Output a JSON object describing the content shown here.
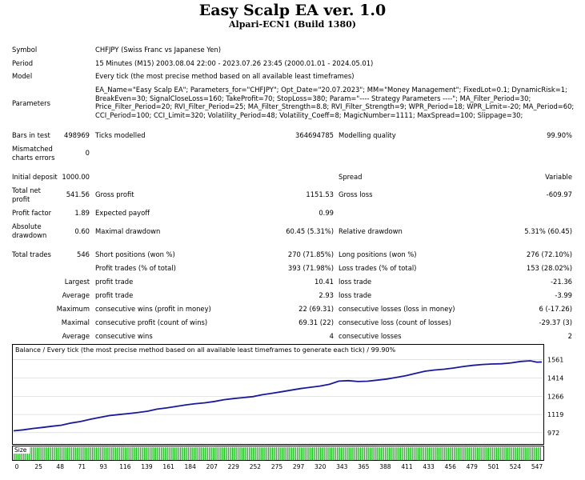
{
  "header": {
    "title": "Easy Scalp EA ver. 1.0",
    "subtitle": "Alpari-ECN1 (Build 1380)"
  },
  "info": {
    "symbol_label": "Symbol",
    "symbol_value": "CHFJPY (Swiss Franc vs Japanese Yen)",
    "period_label": "Period",
    "period_value": "15 Minutes (M15) 2003.08.04 22:00 - 2023.07.26 23:45 (2000.01.01 - 2024.05.01)",
    "model_label": "Model",
    "model_value": "Every tick (the most precise method based on all available least timeframes)",
    "parameters_label": "Parameters",
    "parameters_value": "EA_Name=\"Easy Scalp EA\"; Parameters_for=\"CHFJPY\"; Opt_Date=\"20.07.2023\"; MM=\"Money Management\"; FixedLot=0.1; DynamicRisk=1; BreakEven=30; SignalCloseLoss=160; TakeProfit=70; StopLoss=380; Param=\"---- Strategy Parameters ----\"; MA_Filter_Period=30; Price_Filter_Period=20; RVI_Filter_Period=25; MA_Filter_Strength=8.8; RVI_Filter_Strength=9; WPR_Period=18; WPR_Limit=-20; MA_Period=60; CCI_Period=100; CCI_Limit=320; Volatility_Period=48; Volatility_Coeff=8; MagicNumber=1111; MaxSpread=100; Slippage=30;"
  },
  "stats": {
    "bars_label": "Bars in test",
    "bars_value": "498969",
    "ticks_label": "Ticks modelled",
    "ticks_value": "364694785",
    "quality_label": "Modelling quality",
    "quality_value": "99.90%",
    "mismatched_label_1": "Mismatched",
    "mismatched_label_2": "charts errors",
    "mismatched_value": "0",
    "deposit_label": "Initial deposit",
    "deposit_value": "1000.00",
    "spread_label": "Spread",
    "spread_value": "Variable",
    "net_label_1": "Total net",
    "net_label_2": "profit",
    "net_value": "541.56",
    "gross_profit_label": "Gross profit",
    "gross_profit_value": "1151.53",
    "gross_loss_label": "Gross loss",
    "gross_loss_value": "-609.97",
    "pf_label": "Profit factor",
    "pf_value": "1.89",
    "payoff_label": "Expected payoff",
    "payoff_value": "0.99",
    "absdd_label_1": "Absolute",
    "absdd_label_2": "drawdown",
    "absdd_value": "0.60",
    "maxdd_label": "Maximal drawdown",
    "maxdd_value": "60.45 (5.31%)",
    "reldd_label": "Relative drawdown",
    "reldd_value": "5.31% (60.45)",
    "trades_label": "Total trades",
    "trades_value": "546",
    "short_label": "Short positions (won %)",
    "short_value": "270 (71.85%)",
    "long_label": "Long positions (won %)",
    "long_value": "276 (72.10%)",
    "profit_trades_label": "Profit trades (% of total)",
    "profit_trades_value": "393 (71.98%)",
    "loss_trades_label": "Loss trades (% of total)",
    "loss_trades_value": "153 (28.02%)",
    "largest_label": "Largest",
    "largest_profit_label": "profit trade",
    "largest_profit_value": "10.41",
    "largest_loss_label": "loss trade",
    "largest_loss_value": "-21.36",
    "average_label": "Average",
    "average_profit_label": "profit trade",
    "average_profit_value": "2.93",
    "average_loss_label": "loss trade",
    "average_loss_value": "-3.99",
    "maximum_label": "Maximum",
    "max_wins_label": "consecutive wins (profit in money)",
    "max_wins_value": "22 (69.31)",
    "max_losses_label": "consecutive losses (loss in money)",
    "max_losses_value": "6 (-17.26)",
    "maximal_label": "Maximal",
    "maximal_profit_label": "consecutive profit (count of wins)",
    "maximal_profit_value": "69.31 (22)",
    "maximal_loss_label": "consecutive loss (count of losses)",
    "maximal_loss_value": "-29.37 (3)",
    "average2_label": "Average",
    "avg_wins_label": "consecutive wins",
    "avg_wins_value": "4",
    "avg_losses_label": "consecutive losses",
    "avg_losses_value": "2"
  },
  "chart_data": {
    "type": "line",
    "title": "Balance / Every tick (the most precise method based on all available least timeframes to generate each tick)  / 99.90%",
    "size_label": "Size",
    "colors": {
      "line": "#1a1a99",
      "bars": "#22bb22",
      "grid": "#c8c8c8"
    },
    "ylim": [
      900,
      1610
    ],
    "y_ticks": [
      "1561",
      "1414",
      "1266",
      "1119",
      "972"
    ],
    "y_tick_values": [
      1561,
      1414,
      1266,
      1119,
      972
    ],
    "x_ticks": [
      "0",
      "25",
      "48",
      "71",
      "93",
      "116",
      "139",
      "161",
      "184",
      "207",
      "229",
      "252",
      "275",
      "297",
      "320",
      "343",
      "365",
      "388",
      "411",
      "433",
      "456",
      "479",
      "501",
      "524",
      "547"
    ],
    "xlim": [
      0,
      552
    ],
    "series": [
      {
        "values": [
          [
            0,
            987
          ],
          [
            10,
            995
          ],
          [
            20,
            1006
          ],
          [
            30,
            1014
          ],
          [
            40,
            1024
          ],
          [
            50,
            1032
          ],
          [
            60,
            1050
          ],
          [
            70,
            1062
          ],
          [
            80,
            1080
          ],
          [
            90,
            1095
          ],
          [
            100,
            1110
          ],
          [
            110,
            1118
          ],
          [
            120,
            1126
          ],
          [
            130,
            1135
          ],
          [
            140,
            1145
          ],
          [
            150,
            1162
          ],
          [
            160,
            1172
          ],
          [
            170,
            1184
          ],
          [
            180,
            1196
          ],
          [
            190,
            1206
          ],
          [
            200,
            1213
          ],
          [
            210,
            1224
          ],
          [
            220,
            1238
          ],
          [
            230,
            1247
          ],
          [
            240,
            1255
          ],
          [
            250,
            1263
          ],
          [
            260,
            1278
          ],
          [
            270,
            1290
          ],
          [
            280,
            1302
          ],
          [
            290,
            1315
          ],
          [
            300,
            1328
          ],
          [
            310,
            1338
          ],
          [
            320,
            1348
          ],
          [
            330,
            1362
          ],
          [
            340,
            1388
          ],
          [
            350,
            1392
          ],
          [
            360,
            1385
          ],
          [
            370,
            1387
          ],
          [
            380,
            1396
          ],
          [
            390,
            1405
          ],
          [
            400,
            1418
          ],
          [
            410,
            1432
          ],
          [
            420,
            1450
          ],
          [
            430,
            1468
          ],
          [
            440,
            1478
          ],
          [
            450,
            1484
          ],
          [
            460,
            1494
          ],
          [
            470,
            1506
          ],
          [
            480,
            1515
          ],
          [
            490,
            1522
          ],
          [
            500,
            1526
          ],
          [
            510,
            1528
          ],
          [
            520,
            1535
          ],
          [
            530,
            1547
          ],
          [
            540,
            1552
          ],
          [
            547,
            1541
          ],
          [
            552,
            1542
          ]
        ]
      }
    ]
  }
}
